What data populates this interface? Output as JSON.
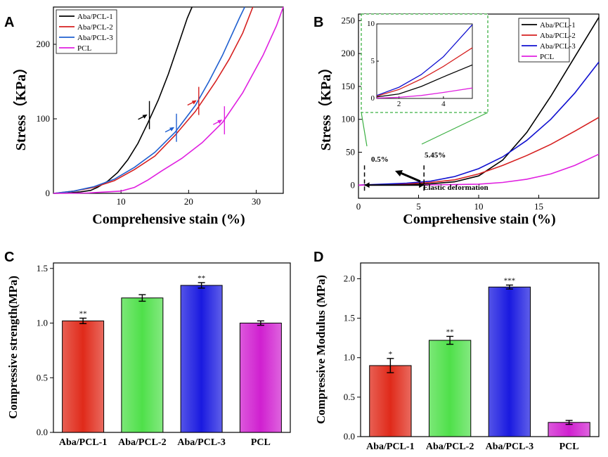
{
  "chart_data": [
    {
      "panel": "A",
      "type": "line",
      "xlabel": "Comprehensive stain (%)",
      "ylabel": "Stress（KPa）",
      "xlim": [
        0,
        34
      ],
      "ylim": [
        0,
        250
      ],
      "xticks": [
        10,
        20,
        30
      ],
      "yticks": [
        0,
        100,
        200
      ],
      "legend_position": "top-left",
      "series": [
        {
          "name": "Aba/PCL-1",
          "color": "#000000",
          "points": [
            [
              0,
              0
            ],
            [
              2,
              0.5
            ],
            [
              4,
              2
            ],
            [
              5.5,
              4
            ],
            [
              6.5,
              8
            ],
            [
              8,
              16
            ],
            [
              9.5,
              28
            ],
            [
              11,
              45
            ],
            [
              12.5,
              67
            ],
            [
              14,
              95
            ],
            [
              15.5,
              125
            ],
            [
              17,
              160
            ],
            [
              18.5,
              200
            ],
            [
              19.8,
              235
            ],
            [
              20.5,
              252
            ]
          ]
        },
        {
          "name": "Aba/PCL-2",
          "color": "#d62020",
          "points": [
            [
              0,
              0
            ],
            [
              3,
              3
            ],
            [
              6,
              8
            ],
            [
              9,
              17
            ],
            [
              12,
              32
            ],
            [
              15,
              50
            ],
            [
              18,
              78
            ],
            [
              21,
              110
            ],
            [
              24,
              150
            ],
            [
              26,
              180
            ],
            [
              28,
              215
            ],
            [
              29.5,
              250
            ]
          ]
        },
        {
          "name": "Aba/PCL-3",
          "color": "#2060d0",
          "points": [
            [
              0,
              0
            ],
            [
              3,
              3
            ],
            [
              6,
              9
            ],
            [
              9,
              19
            ],
            [
              12,
              35
            ],
            [
              15,
              55
            ],
            [
              18,
              82
            ],
            [
              21,
              118
            ],
            [
              23,
              150
            ],
            [
              25,
              185
            ],
            [
              27.5,
              235
            ],
            [
              28.3,
              250
            ]
          ]
        },
        {
          "name": "PCL",
          "color": "#e020e0",
          "points": [
            [
              0,
              0
            ],
            [
              5,
              0.5
            ],
            [
              10,
              3
            ],
            [
              12,
              8
            ],
            [
              14,
              18
            ],
            [
              16,
              30
            ],
            [
              19,
              47
            ],
            [
              22,
              68
            ],
            [
              25,
              95
            ],
            [
              28,
              135
            ],
            [
              31,
              185
            ],
            [
              33,
              225
            ],
            [
              34,
              250
            ]
          ]
        }
      ],
      "markers": [
        {
          "series": "Aba/PCL-1",
          "x": 14.2,
          "y": 105
        },
        {
          "series": "Aba/PCL-2",
          "x": 21.5,
          "y": 124
        },
        {
          "series": "Aba/PCL-3",
          "x": 18.2,
          "y": 88
        },
        {
          "series": "PCL",
          "x": 25.3,
          "y": 98
        }
      ]
    },
    {
      "panel": "B",
      "type": "line",
      "xlabel": "Comprehensive stain (%)",
      "ylabel": "Stress（KPa）",
      "xlim": [
        0,
        20
      ],
      "ylim": [
        -20,
        260
      ],
      "xticks": [
        0,
        5,
        10,
        15
      ],
      "yticks": [
        0,
        50,
        100,
        150,
        200,
        250
      ],
      "legend_position": "top-right",
      "series": [
        {
          "name": "Aba/PCL-1",
          "color": "#000000",
          "points": [
            [
              0,
              0
            ],
            [
              4,
              1
            ],
            [
              6,
              2
            ],
            [
              8,
              5
            ],
            [
              10,
              14
            ],
            [
              12,
              38
            ],
            [
              14,
              80
            ],
            [
              16,
              135
            ],
            [
              18,
              195
            ],
            [
              20,
              255
            ]
          ]
        },
        {
          "name": "Aba/PCL-2",
          "color": "#d62020",
          "points": [
            [
              0,
              0
            ],
            [
              4,
              2
            ],
            [
              6,
              4
            ],
            [
              8,
              8
            ],
            [
              10,
              17
            ],
            [
              12,
              30
            ],
            [
              14,
              45
            ],
            [
              16,
              62
            ],
            [
              18,
              82
            ],
            [
              20,
              103
            ]
          ]
        },
        {
          "name": "Aba/PCL-3",
          "color": "#1010d0",
          "points": [
            [
              0,
              0
            ],
            [
              4,
              3
            ],
            [
              6,
              6
            ],
            [
              8,
              13
            ],
            [
              10,
              25
            ],
            [
              12,
              43
            ],
            [
              14,
              68
            ],
            [
              16,
              100
            ],
            [
              18,
              140
            ],
            [
              20,
              187
            ]
          ]
        },
        {
          "name": "PCL",
          "color": "#e020e0",
          "points": [
            [
              0,
              0
            ],
            [
              6,
              0.3
            ],
            [
              10,
              1.5
            ],
            [
              12,
              4
            ],
            [
              14,
              9
            ],
            [
              16,
              17
            ],
            [
              18,
              30
            ],
            [
              20,
              47
            ]
          ]
        }
      ],
      "annotations": [
        "0.5%",
        "5.45%",
        "Elastic deformation"
      ],
      "inset": {
        "xlim": [
          1,
          5.3
        ],
        "ylim": [
          0,
          10
        ],
        "xticks": [
          2,
          4
        ],
        "yticks": [
          0,
          5,
          10
        ],
        "series": [
          {
            "name": "Aba/PCL-1",
            "color": "#000000",
            "points": [
              [
                1,
                0.2
              ],
              [
                2,
                0.6
              ],
              [
                3,
                1.6
              ],
              [
                4,
                2.9
              ],
              [
                5.3,
                4.5
              ]
            ]
          },
          {
            "name": "Aba/PCL-2",
            "color": "#d62020",
            "points": [
              [
                1,
                0.3
              ],
              [
                2,
                1.2
              ],
              [
                3,
                2.6
              ],
              [
                4,
                4.3
              ],
              [
                5.3,
                6.8
              ]
            ]
          },
          {
            "name": "Aba/PCL-3",
            "color": "#1010d0",
            "points": [
              [
                1,
                0.4
              ],
              [
                2,
                1.5
              ],
              [
                3,
                3.2
              ],
              [
                4,
                5.6
              ],
              [
                5.3,
                9.9
              ]
            ]
          },
          {
            "name": "PCL",
            "color": "#e020e0",
            "points": [
              [
                1,
                0.05
              ],
              [
                2,
                0.15
              ],
              [
                3,
                0.4
              ],
              [
                4,
                0.8
              ],
              [
                5.3,
                1.4
              ]
            ]
          }
        ]
      }
    },
    {
      "panel": "C",
      "type": "bar",
      "ylabel": "Compressive strength(MPa)",
      "categories": [
        "Aba/PCL-1",
        "Aba/PCL-2",
        "Aba/PCL-3",
        "PCL"
      ],
      "values": [
        1.02,
        1.23,
        1.345,
        1.0
      ],
      "errors": [
        0.025,
        0.03,
        0.025,
        0.02
      ],
      "significance": [
        "**",
        "",
        "**",
        ""
      ],
      "colors": [
        "#e02a1a",
        "#4fe04a",
        "#1a1ae0",
        "#d020d0"
      ],
      "ylim": [
        0,
        1.55
      ],
      "yticks": [
        0.0,
        0.5,
        1.0,
        1.5
      ]
    },
    {
      "panel": "D",
      "type": "bar",
      "ylabel": "Compressive Modulus (MPa)",
      "categories": [
        "Aba/PCL-1",
        "Aba/PCL-2",
        "Aba/PCL-3",
        "PCL"
      ],
      "values": [
        0.9,
        1.22,
        1.895,
        0.18
      ],
      "errors": [
        0.09,
        0.05,
        0.025,
        0.025
      ],
      "significance": [
        "*",
        "**",
        "***",
        ""
      ],
      "colors": [
        "#e02a1a",
        "#4fe04a",
        "#1a1ae0",
        "#d020d0"
      ],
      "ylim": [
        0,
        2.2
      ],
      "yticks": [
        0.0,
        0.5,
        1.0,
        1.5,
        2.0
      ]
    }
  ],
  "labels": {
    "panel_a": "A",
    "panel_b": "B",
    "panel_c": "C",
    "panel_d": "D",
    "axis_title_x_a": "Comprehensive stain (%)",
    "axis_title_y_a": "Stress（KPa）",
    "axis_title_x_b": "Comprehensive stain (%)",
    "axis_title_y_b": "Stress（KPa）",
    "axis_title_y_c": "Compressive strength(MPa)",
    "axis_title_y_d": "Compressive Modulus (MPa)",
    "annot_05": "0.5%",
    "annot_545": "5.45%",
    "annot_elastic": "Elastic deformation"
  }
}
